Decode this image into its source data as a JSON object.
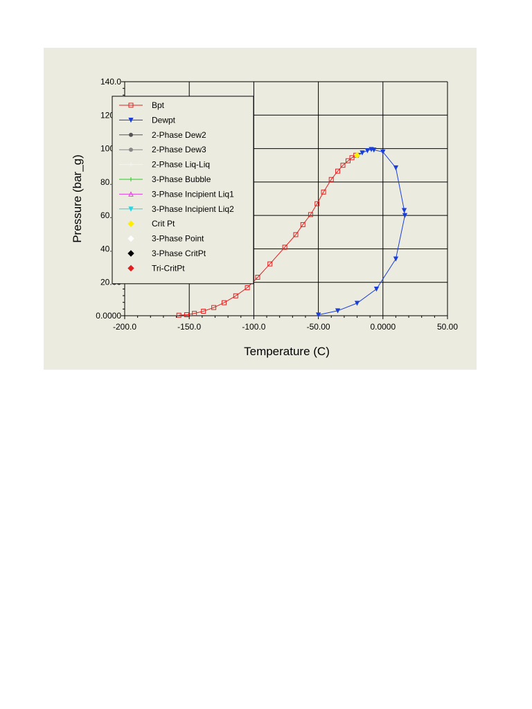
{
  "chart_data": {
    "type": "line",
    "title": "",
    "xlabel": "Temperature (C)",
    "ylabel": "Pressure (bar_g)",
    "xlim": [
      -200,
      50
    ],
    "ylim": [
      0,
      140
    ],
    "x_ticks": [
      -200,
      -150,
      -100,
      -50,
      0,
      50
    ],
    "x_tick_labels": [
      "-200.0",
      "-150.0",
      "-100.0",
      "-50.00",
      "0.0000",
      "50.00"
    ],
    "y_ticks": [
      0,
      20,
      40,
      60,
      80,
      100,
      120,
      140
    ],
    "y_tick_labels": [
      "0.0000",
      "20.00",
      "40.00",
      "60.00",
      "80.00",
      "100.0",
      "120.0",
      "140.0"
    ],
    "grid": true,
    "legend_position": "top-left",
    "series": [
      {
        "name": "Bpt",
        "color": "#e02020",
        "marker": "square",
        "points": [
          [
            -158,
            0.3
          ],
          [
            -152,
            0.6
          ],
          [
            -146,
            1.4
          ],
          [
            -139,
            2.7
          ],
          [
            -131,
            4.9
          ],
          [
            -123,
            7.8
          ],
          [
            -114,
            11.9
          ],
          [
            -105,
            16.8
          ],
          [
            -97,
            23
          ],
          [
            -87.5,
            31
          ],
          [
            -76,
            41
          ],
          [
            -67.5,
            48.5
          ],
          [
            -62,
            54.5
          ],
          [
            -56,
            60.5
          ],
          [
            -51,
            67
          ],
          [
            -46,
            74
          ],
          [
            -40,
            81.5
          ],
          [
            -35,
            86.5
          ],
          [
            -31,
            90
          ],
          [
            -27,
            92.7
          ],
          [
            -24,
            94.5
          ],
          [
            -21,
            96
          ]
        ]
      },
      {
        "name": "Dewpt",
        "color": "#1a3fd6",
        "marker": "triangle-down",
        "points": [
          [
            -50,
            0.5
          ],
          [
            -35,
            3
          ],
          [
            -20,
            7.5
          ],
          [
            -5,
            16
          ],
          [
            10,
            34
          ],
          [
            17,
            60
          ],
          [
            16.5,
            63
          ],
          [
            10,
            88.5
          ],
          [
            0,
            98
          ],
          [
            -7,
            99.2
          ],
          [
            -9,
            99.5
          ],
          [
            -12,
            98.8
          ],
          [
            -16,
            97.5
          ],
          [
            -19,
            96
          ]
        ]
      },
      {
        "name": "2-Phase Dew2",
        "color": "#555555",
        "marker": "circle",
        "points": []
      },
      {
        "name": "2-Phase Dew3",
        "color": "#888888",
        "marker": "circle",
        "points": []
      },
      {
        "name": "2-Phase Liq-Liq",
        "color": "#f4f4f4",
        "marker": "plus",
        "points": []
      },
      {
        "name": "3-Phase Bubble",
        "color": "#22cc22",
        "marker": "plus",
        "points": []
      },
      {
        "name": "3-Phase Incipient Liq1",
        "color": "#e040e0",
        "marker": "triangle-up",
        "points": []
      },
      {
        "name": "3-Phase Incipient Liq2",
        "color": "#20d8e8",
        "marker": "triangle-down",
        "points": []
      },
      {
        "name": "Crit Pt",
        "color": "#ffee00",
        "marker": "diamond",
        "points": [
          [
            -20,
            96
          ]
        ]
      },
      {
        "name": "3-Phase Point",
        "color": "#ffffff",
        "marker": "diamond",
        "points": []
      },
      {
        "name": "3-Phase CritPt",
        "color": "#000000",
        "marker": "diamond",
        "points": []
      },
      {
        "name": "Tri-CritPt",
        "color": "#e02020",
        "marker": "diamond",
        "points": []
      }
    ]
  }
}
